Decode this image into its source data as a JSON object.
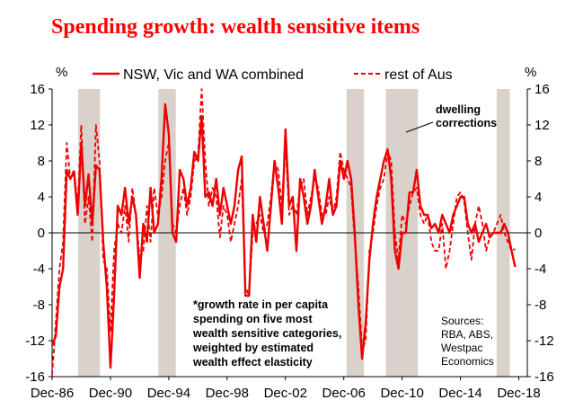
{
  "chart_data": {
    "type": "line",
    "title": "Spending growth: wealth sensitive items",
    "ylabel_left": "%",
    "ylabel_right": "%",
    "ylim": [
      -16,
      16
    ],
    "xlim": [
      1986.917,
      2019.5
    ],
    "y_ticks": [
      "16",
      "12",
      "8",
      "4",
      "0",
      "-4",
      "-8",
      "-12",
      "-16"
    ],
    "x_ticks": [
      {
        "label": "Dec-86",
        "x": 1986.917
      },
      {
        "label": "Dec-90",
        "x": 1990.917
      },
      {
        "label": "Dec-94",
        "x": 1994.917
      },
      {
        "label": "Dec-98",
        "x": 1998.917
      },
      {
        "label": "Dec-02",
        "x": 2002.917
      },
      {
        "label": "Dec-06",
        "x": 2006.917
      },
      {
        "label": "Dec-10",
        "x": 2010.917
      },
      {
        "label": "Dec-14",
        "x": 2014.917
      },
      {
        "label": "Dec-18",
        "x": 2018.917
      }
    ],
    "shaded_periods": [
      [
        1988.7,
        1990.2
      ],
      [
        1994.2,
        1995.4
      ],
      [
        2007.1,
        2008.3
      ],
      [
        2009.8,
        2012.0
      ],
      [
        2017.4,
        2018.3
      ]
    ],
    "series": [
      {
        "name": "NSW, Vic and WA combined",
        "style": "solid",
        "color": "#ee0000",
        "points": [
          [
            1986.92,
            -12.5
          ],
          [
            1987.17,
            -11.5
          ],
          [
            1987.42,
            -6
          ],
          [
            1987.67,
            -4
          ],
          [
            1987.92,
            7
          ],
          [
            1988.17,
            6
          ],
          [
            1988.42,
            6.8
          ],
          [
            1988.67,
            2
          ],
          [
            1988.92,
            10
          ],
          [
            1989.17,
            3
          ],
          [
            1989.42,
            6.5
          ],
          [
            1989.67,
            1
          ],
          [
            1989.92,
            7.5
          ],
          [
            1990.17,
            7
          ],
          [
            1990.42,
            -1
          ],
          [
            1990.67,
            -6
          ],
          [
            1990.92,
            -15
          ],
          [
            1991.17,
            -7
          ],
          [
            1991.42,
            3
          ],
          [
            1991.67,
            2
          ],
          [
            1991.92,
            5
          ],
          [
            1992.17,
            1
          ],
          [
            1992.42,
            4
          ],
          [
            1992.67,
            2
          ],
          [
            1992.92,
            -5
          ],
          [
            1993.17,
            1
          ],
          [
            1993.42,
            -1
          ],
          [
            1993.67,
            5
          ],
          [
            1993.92,
            0
          ],
          [
            1994.17,
            1
          ],
          [
            1994.42,
            6
          ],
          [
            1994.67,
            14.3
          ],
          [
            1994.92,
            11
          ],
          [
            1995.17,
            0
          ],
          [
            1995.42,
            -1
          ],
          [
            1995.67,
            7
          ],
          [
            1995.92,
            6
          ],
          [
            1996.17,
            3
          ],
          [
            1996.42,
            5
          ],
          [
            1996.67,
            9
          ],
          [
            1996.92,
            8
          ],
          [
            1997.17,
            13
          ],
          [
            1997.42,
            4
          ],
          [
            1997.67,
            4.5
          ],
          [
            1997.92,
            3
          ],
          [
            1998.17,
            6
          ],
          [
            1998.42,
            2
          ],
          [
            1998.67,
            5
          ],
          [
            1998.92,
            3
          ],
          [
            1999.17,
            1
          ],
          [
            1999.42,
            3
          ],
          [
            1999.67,
            7
          ],
          [
            1999.92,
            8.5
          ],
          [
            2000.17,
            -7
          ],
          [
            2000.42,
            -7
          ],
          [
            2000.67,
            2
          ],
          [
            2000.92,
            -1
          ],
          [
            2001.17,
            4
          ],
          [
            2001.42,
            1
          ],
          [
            2001.67,
            -2
          ],
          [
            2001.92,
            3
          ],
          [
            2002.17,
            8
          ],
          [
            2002.42,
            5
          ],
          [
            2002.67,
            1
          ],
          [
            2002.92,
            11.5
          ],
          [
            2003.17,
            3
          ],
          [
            2003.42,
            4
          ],
          [
            2003.67,
            -2
          ],
          [
            2003.92,
            6
          ],
          [
            2004.17,
            4
          ],
          [
            2004.42,
            1
          ],
          [
            2004.67,
            3
          ],
          [
            2004.92,
            7
          ],
          [
            2005.17,
            4
          ],
          [
            2005.42,
            1
          ],
          [
            2005.67,
            3
          ],
          [
            2005.92,
            6
          ],
          [
            2006.17,
            2
          ],
          [
            2006.42,
            3
          ],
          [
            2006.67,
            8
          ],
          [
            2006.92,
            6
          ],
          [
            2007.17,
            8
          ],
          [
            2007.42,
            6
          ],
          [
            2007.67,
            0
          ],
          [
            2007.92,
            -8
          ],
          [
            2008.17,
            -14
          ],
          [
            2008.42,
            -10
          ],
          [
            2008.67,
            -3
          ],
          [
            2008.92,
            1
          ],
          [
            2009.17,
            4
          ],
          [
            2009.42,
            6
          ],
          [
            2009.67,
            8
          ],
          [
            2009.92,
            9.3
          ],
          [
            2010.17,
            6
          ],
          [
            2010.42,
            -2
          ],
          [
            2010.67,
            -4
          ],
          [
            2010.92,
            0
          ],
          [
            2011.17,
            0
          ],
          [
            2011.42,
            4.5
          ],
          [
            2011.67,
            4.5
          ],
          [
            2011.92,
            7
          ],
          [
            2012.17,
            3
          ],
          [
            2012.42,
            2
          ],
          [
            2012.67,
            2
          ],
          [
            2012.92,
            0.5
          ],
          [
            2013.17,
            1
          ],
          [
            2013.42,
            0
          ],
          [
            2013.67,
            2
          ],
          [
            2013.92,
            1
          ],
          [
            2014.17,
            0
          ],
          [
            2014.42,
            2
          ],
          [
            2014.67,
            3
          ],
          [
            2014.92,
            4
          ],
          [
            2015.17,
            4
          ],
          [
            2015.42,
            1
          ],
          [
            2015.67,
            0
          ],
          [
            2015.92,
            1
          ],
          [
            2016.17,
            -1
          ],
          [
            2016.42,
            0
          ],
          [
            2016.67,
            1
          ],
          [
            2016.92,
            -0.5
          ],
          [
            2017.17,
            0
          ],
          [
            2017.42,
            0
          ],
          [
            2017.67,
            0
          ],
          [
            2017.92,
            1
          ],
          [
            2018.17,
            0
          ],
          [
            2018.42,
            -2
          ],
          [
            2018.67,
            -3.8
          ]
        ]
      },
      {
        "name": "rest of Aus",
        "style": "dashed",
        "color": "#ee0000",
        "points": [
          [
            1986.92,
            -15.8
          ],
          [
            1987.17,
            -10
          ],
          [
            1987.42,
            -4
          ],
          [
            1987.67,
            -1
          ],
          [
            1987.92,
            10
          ],
          [
            1988.17,
            6
          ],
          [
            1988.42,
            7
          ],
          [
            1988.67,
            3
          ],
          [
            1988.92,
            12
          ],
          [
            1989.17,
            1
          ],
          [
            1989.42,
            4
          ],
          [
            1989.67,
            -1
          ],
          [
            1989.92,
            12
          ],
          [
            1990.17,
            8
          ],
          [
            1990.42,
            -3
          ],
          [
            1990.67,
            -4
          ],
          [
            1990.92,
            -11
          ],
          [
            1991.17,
            -2
          ],
          [
            1991.42,
            1
          ],
          [
            1991.67,
            0
          ],
          [
            1991.92,
            3
          ],
          [
            1992.17,
            -1
          ],
          [
            1992.42,
            5
          ],
          [
            1992.67,
            2
          ],
          [
            1992.92,
            -3
          ],
          [
            1993.17,
            -2
          ],
          [
            1993.42,
            3
          ],
          [
            1993.67,
            -1
          ],
          [
            1993.92,
            5
          ],
          [
            1994.17,
            2
          ],
          [
            1994.42,
            4
          ],
          [
            1994.67,
            8
          ],
          [
            1994.92,
            10
          ],
          [
            1995.17,
            1
          ],
          [
            1995.42,
            0
          ],
          [
            1995.67,
            3
          ],
          [
            1995.92,
            5
          ],
          [
            1996.17,
            2
          ],
          [
            1996.42,
            4
          ],
          [
            1996.67,
            8
          ],
          [
            1996.92,
            8.5
          ],
          [
            1997.17,
            16
          ],
          [
            1997.42,
            8
          ],
          [
            1997.67,
            3
          ],
          [
            1997.92,
            5
          ],
          [
            1998.17,
            4
          ],
          [
            1998.42,
            -0.5
          ],
          [
            1998.67,
            3
          ],
          [
            1998.92,
            2
          ],
          [
            1999.17,
            -1
          ],
          [
            1999.42,
            1
          ],
          [
            1999.67,
            3
          ],
          [
            1999.92,
            6
          ],
          [
            2000.17,
            -6
          ],
          [
            2000.42,
            -7
          ],
          [
            2000.67,
            0
          ],
          [
            2000.92,
            1
          ],
          [
            2001.17,
            2
          ],
          [
            2001.42,
            0
          ],
          [
            2001.67,
            1
          ],
          [
            2001.92,
            4
          ],
          [
            2002.17,
            8
          ],
          [
            2002.42,
            7
          ],
          [
            2002.67,
            3
          ],
          [
            2002.92,
            10
          ],
          [
            2003.17,
            2
          ],
          [
            2003.42,
            3
          ],
          [
            2003.67,
            2
          ],
          [
            2003.92,
            5
          ],
          [
            2004.17,
            6
          ],
          [
            2004.42,
            2
          ],
          [
            2004.67,
            4
          ],
          [
            2004.92,
            6
          ],
          [
            2005.17,
            5
          ],
          [
            2005.42,
            2
          ],
          [
            2005.67,
            2
          ],
          [
            2005.92,
            4
          ],
          [
            2006.17,
            2
          ],
          [
            2006.42,
            4
          ],
          [
            2006.67,
            9
          ],
          [
            2006.92,
            7
          ],
          [
            2007.17,
            6
          ],
          [
            2007.42,
            5
          ],
          [
            2007.67,
            -1
          ],
          [
            2007.92,
            -6
          ],
          [
            2008.17,
            -13
          ],
          [
            2008.42,
            -12
          ],
          [
            2008.67,
            -2
          ],
          [
            2008.92,
            0
          ],
          [
            2009.17,
            3
          ],
          [
            2009.42,
            5
          ],
          [
            2009.67,
            6
          ],
          [
            2009.92,
            9
          ],
          [
            2010.17,
            8
          ],
          [
            2010.42,
            0
          ],
          [
            2010.67,
            -3
          ],
          [
            2010.92,
            2
          ],
          [
            2011.17,
            1
          ],
          [
            2011.42,
            3
          ],
          [
            2011.67,
            4.5
          ],
          [
            2011.92,
            5
          ],
          [
            2012.17,
            2
          ],
          [
            2012.42,
            1
          ],
          [
            2012.67,
            2
          ],
          [
            2012.92,
            -1
          ],
          [
            2013.17,
            -2
          ],
          [
            2013.42,
            -2
          ],
          [
            2013.67,
            1
          ],
          [
            2013.92,
            -4
          ],
          [
            2014.17,
            -2
          ],
          [
            2014.42,
            1
          ],
          [
            2014.67,
            4
          ],
          [
            2014.92,
            4.5
          ],
          [
            2015.17,
            3.5
          ],
          [
            2015.42,
            0
          ],
          [
            2015.67,
            -3
          ],
          [
            2015.92,
            1
          ],
          [
            2016.17,
            3
          ],
          [
            2016.42,
            1
          ],
          [
            2016.67,
            -2
          ],
          [
            2016.92,
            -0.5
          ],
          [
            2017.17,
            0
          ],
          [
            2017.42,
            1
          ],
          [
            2017.67,
            2
          ],
          [
            2017.92,
            0
          ],
          [
            2018.17,
            -1
          ],
          [
            2018.42,
            -2
          ],
          [
            2018.67,
            -1.8
          ]
        ]
      }
    ],
    "annotations": {
      "dwelling": [
        "dwelling",
        "corrections"
      ],
      "note": [
        "*growth rate in per capita",
        "spending on five most",
        "wealth sensitive categories,",
        "weighted by estimated",
        "wealth effect elasticity"
      ],
      "sources": [
        "Sources:",
        "RBA, ABS,",
        "Westpac",
        "Economics"
      ]
    },
    "legend_placement": "top",
    "shade_color": "#d9d2cb",
    "grid": false
  }
}
